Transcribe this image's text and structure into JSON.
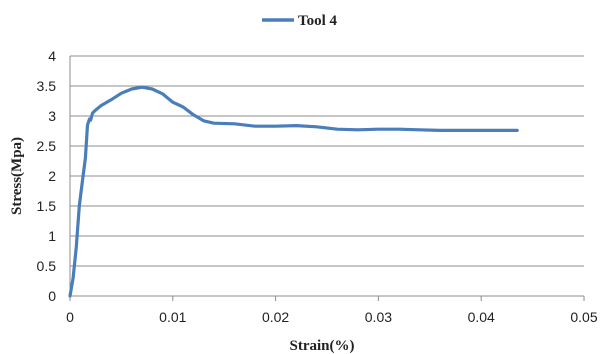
{
  "chart_data": {
    "type": "line",
    "xlabel": "Strain(%)",
    "ylabel": "Stress(Mpa)",
    "xlim": [
      0,
      0.05
    ],
    "ylim": [
      0,
      4
    ],
    "x_ticks": [
      "0",
      "0.01",
      "0.02",
      "0.03",
      "0.04",
      "0.05"
    ],
    "y_ticks": [
      "0",
      "0.5",
      "1",
      "1.5",
      "2",
      "2.5",
      "3",
      "3.5",
      "4"
    ],
    "x_tick_values": [
      0,
      0.01,
      0.02,
      0.03,
      0.04,
      0.05
    ],
    "y_tick_values": [
      0,
      0.5,
      1,
      1.5,
      2,
      2.5,
      3,
      3.5,
      4
    ],
    "grid": {
      "horizontal": true,
      "vertical": false
    },
    "legend_position": "top-center",
    "series": [
      {
        "name": "Tool 4",
        "color": "#4a7ebb",
        "x": [
          0,
          0.0003,
          0.0006,
          0.0009,
          0.0012,
          0.0015,
          0.0017,
          0.0019,
          0.002,
          0.0022,
          0.0025,
          0.003,
          0.004,
          0.005,
          0.006,
          0.007,
          0.008,
          0.009,
          0.01,
          0.011,
          0.012,
          0.013,
          0.014,
          0.016,
          0.018,
          0.02,
          0.022,
          0.024,
          0.026,
          0.028,
          0.03,
          0.032,
          0.034,
          0.036,
          0.038,
          0.04,
          0.042,
          0.0435
        ],
        "y": [
          0,
          0.3,
          0.8,
          1.5,
          1.9,
          2.3,
          2.85,
          2.95,
          2.93,
          3.05,
          3.1,
          3.17,
          3.27,
          3.38,
          3.45,
          3.48,
          3.45,
          3.37,
          3.23,
          3.15,
          3.02,
          2.92,
          2.88,
          2.87,
          2.83,
          2.83,
          2.84,
          2.82,
          2.78,
          2.77,
          2.78,
          2.78,
          2.77,
          2.76,
          2.76,
          2.76,
          2.76,
          2.76
        ]
      }
    ]
  }
}
